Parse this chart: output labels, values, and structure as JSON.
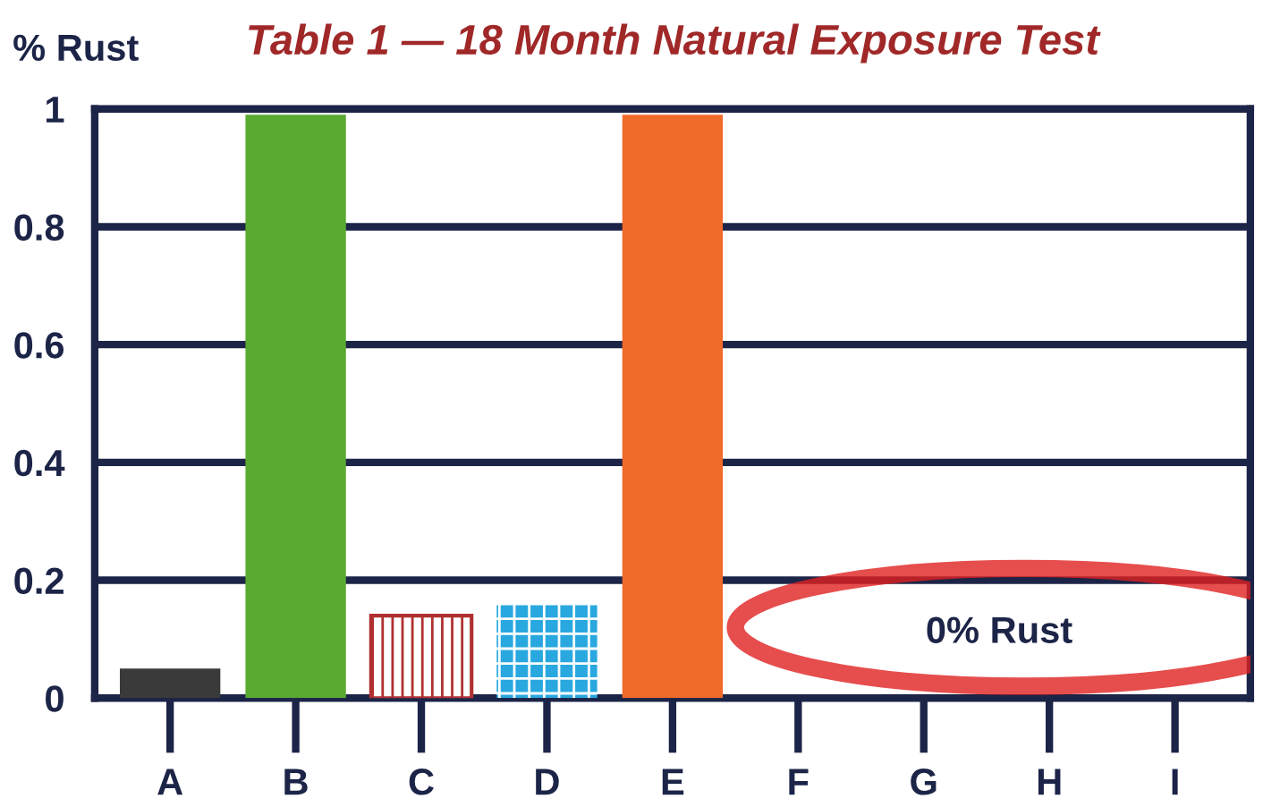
{
  "chart_data": {
    "type": "bar",
    "title": "Table 1 — 18 Month Natural Exposure Test",
    "ylabel": "% Rust",
    "categories": [
      "A",
      "B",
      "C",
      "D",
      "E",
      "F",
      "G",
      "H",
      "I"
    ],
    "values": [
      0.05,
      0.99,
      0.14,
      0.16,
      0.99,
      0,
      0,
      0,
      0
    ],
    "colors": [
      "#3a3a3a",
      "#5aaa32",
      "#b03030",
      "#29a8e0",
      "#f06a2a",
      "#1c2447",
      "#1c2447",
      "#1c2447",
      "#1c2447"
    ],
    "ylim": [
      0,
      1
    ],
    "yticks": [
      0,
      0.2,
      0.4,
      0.6,
      0.8,
      1
    ],
    "grid": "y",
    "annotations": [
      "0% Rust"
    ]
  }
}
